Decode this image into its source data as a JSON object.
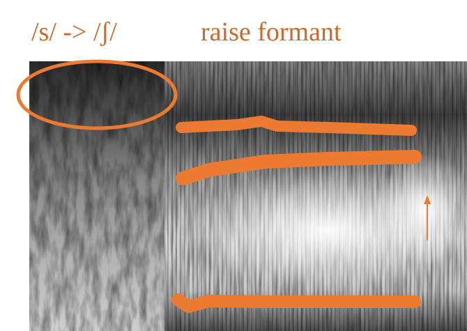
{
  "annotations": {
    "left": "/s/ -> /ʃ/",
    "right": "raise formant"
  }
}
